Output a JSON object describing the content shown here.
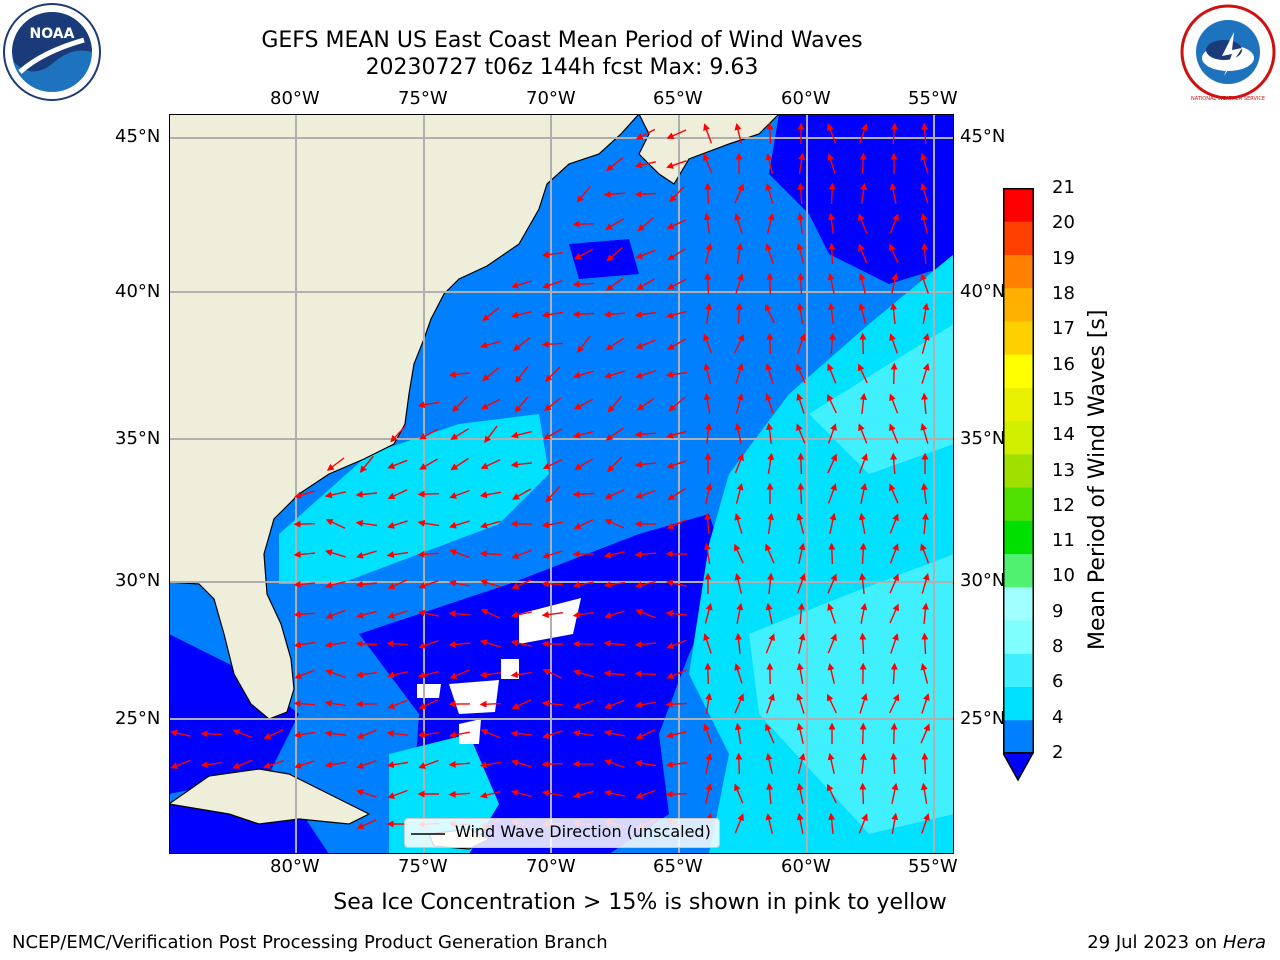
{
  "header": {
    "title_line1": "GEFS MEAN US East Coast Mean Period of Wind Waves",
    "title_line2": "20230727 t06z 144h fcst   Max: 9.63"
  },
  "logos": {
    "left": {
      "name": "noaa-logo",
      "text": "NOAA"
    },
    "right": {
      "name": "nws-logo",
      "text": "NATIONAL WEATHER SERVICE"
    }
  },
  "map": {
    "lon_range": [
      -85,
      -54.2
    ],
    "lat_range": [
      20.5,
      46.0
    ],
    "lon_ticks": [
      "80°W",
      "75°W",
      "70°W",
      "65°W",
      "60°W",
      "55°W"
    ],
    "lat_ticks": [
      "45°N",
      "40°N",
      "35°N",
      "30°N",
      "25°N"
    ],
    "colors": {
      "land": "#efeedb",
      "coastline": "#000000",
      "gridline": "#b0b0b0",
      "arrow": "#ff0000"
    }
  },
  "legend": {
    "label": "Wind Wave Direction (unscaled)"
  },
  "colorbar": {
    "label": "Mean Period of Wind Waves [s]",
    "ticks": [
      "2",
      "4",
      "6",
      "8",
      "9",
      "10",
      "11",
      "12",
      "13",
      "14",
      "15",
      "16",
      "17",
      "18",
      "19",
      "20",
      "21"
    ],
    "colors": [
      "#0080ff",
      "#00e0ff",
      "#40f0ff",
      "#80ffff",
      "#a0ffff",
      "#50f070",
      "#00e000",
      "#50e000",
      "#a0e000",
      "#d0f000",
      "#e8f000",
      "#ffff00",
      "#ffd000",
      "#ffb000",
      "#ff8000",
      "#ff4000",
      "#ff0000"
    ],
    "under_color": "#0000ff"
  },
  "footer": {
    "note": "Sea Ice Concentration > 15% is shown in pink to yellow",
    "org": "NCEP/EMC/Verification Post Processing Product Generation Branch",
    "date": "29 Jul 2023 on",
    "machine": "Hera"
  }
}
